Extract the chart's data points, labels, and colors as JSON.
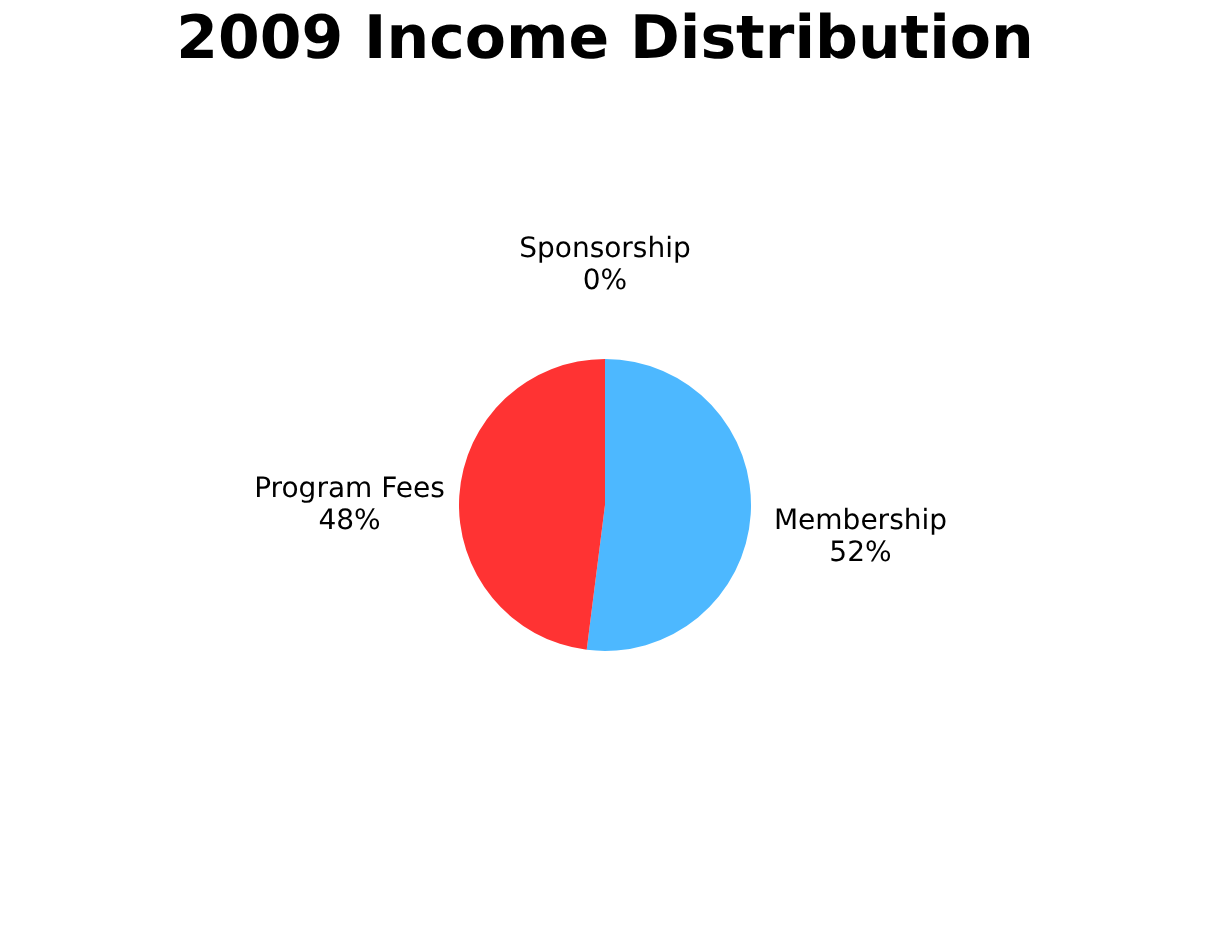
{
  "chart_data": {
    "type": "pie",
    "title": "2009 Income Distribution",
    "categories": [
      "Membership",
      "Program Fees",
      "Sponsorship"
    ],
    "values": [
      52,
      48,
      0
    ],
    "value_labels": [
      "52%",
      "48%",
      "0%"
    ],
    "colors": [
      "#4db8ff",
      "#ff3333",
      "#999999"
    ],
    "legend": false
  }
}
